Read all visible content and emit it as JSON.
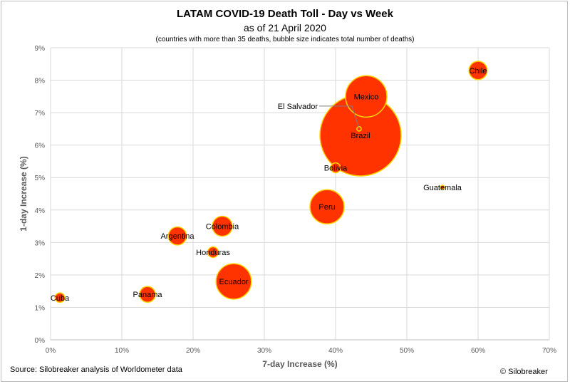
{
  "chart_data": {
    "type": "bubble",
    "title": "LATAM COVID-19 Death Toll - Day vs Week",
    "subtitle": "as of 21 April 2020",
    "note": "(countries with more than 35 deaths, bubble size indicates total number of deaths)",
    "xlabel": "7-day Increase (%)",
    "ylabel": "1-day Increase (%)",
    "xlim": [
      0,
      70
    ],
    "ylim": [
      0,
      9
    ],
    "x_ticks": [
      "0%",
      "10%",
      "20%",
      "30%",
      "40%",
      "50%",
      "60%",
      "70%"
    ],
    "y_ticks": [
      "0%",
      "1%",
      "2%",
      "3%",
      "4%",
      "5%",
      "6%",
      "7%",
      "8%",
      "9%"
    ],
    "grid": true,
    "bubble_fill": "#ff3300",
    "bubble_stroke": "#ffd500",
    "points": [
      {
        "label": "Brazil",
        "x": 43.5,
        "y": 6.3,
        "size": 2741
      },
      {
        "label": "Mexico",
        "x": 44.3,
        "y": 7.5,
        "size": 712
      },
      {
        "label": "Peru",
        "x": 38.8,
        "y": 4.1,
        "size": 484
      },
      {
        "label": "Ecuador",
        "x": 25.7,
        "y": 1.8,
        "size": 520
      },
      {
        "label": "Colombia",
        "x": 24.1,
        "y": 3.5,
        "size": 166
      },
      {
        "label": "Argentina",
        "x": 17.8,
        "y": 3.2,
        "size": 136
      },
      {
        "label": "Chile",
        "x": 60.0,
        "y": 8.3,
        "size": 139
      },
      {
        "label": "Panama",
        "x": 13.6,
        "y": 1.4,
        "size": 103
      },
      {
        "label": "Bolivia",
        "x": 40.0,
        "y": 5.3,
        "size": 40
      },
      {
        "label": "Honduras",
        "x": 22.8,
        "y": 2.7,
        "size": 47
      },
      {
        "label": "Guatemala",
        "x": 55.0,
        "y": 4.7,
        "size": 7
      },
      {
        "label": "Cuba",
        "x": 1.3,
        "y": 1.3,
        "size": 38
      },
      {
        "label": "El Salvador",
        "x": 43.3,
        "y": 6.5,
        "size": 8
      }
    ]
  },
  "footer": {
    "source": "Source: Silobreaker analysis of Worldometer data",
    "copyright": "© Silobreaker"
  }
}
